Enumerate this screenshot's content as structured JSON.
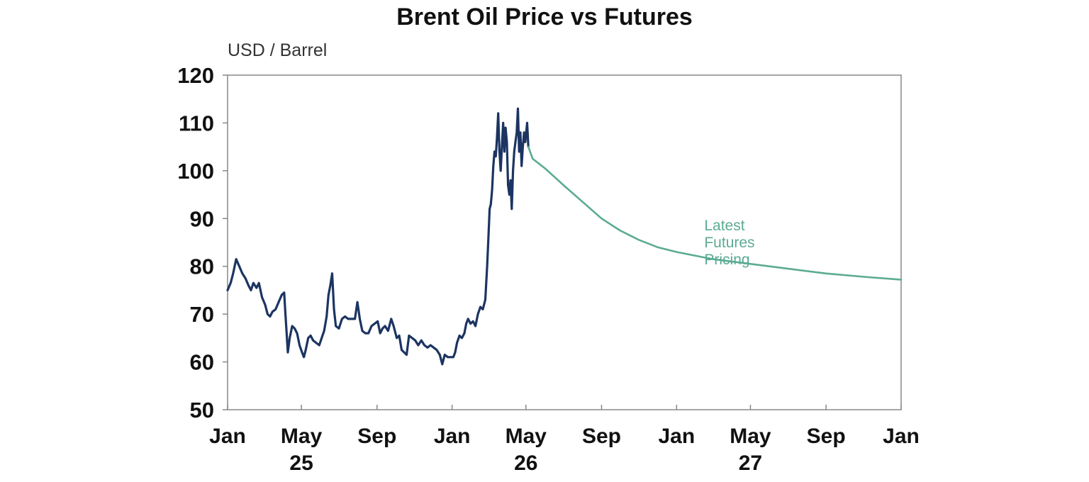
{
  "chart_data": {
    "type": "line",
    "title": "Brent Oil Price vs Futures",
    "ylabel": "USD / Barrel",
    "ylim": [
      50,
      120
    ],
    "yticks": [
      50,
      60,
      70,
      80,
      90,
      100,
      110,
      120
    ],
    "xlim": [
      "2025-01-01",
      "2028-01-01"
    ],
    "xticks": [
      {
        "date": "2025-01-01",
        "label": "Jan"
      },
      {
        "date": "2025-05-01",
        "label": "May"
      },
      {
        "date": "2025-09-01",
        "label": "Sep"
      },
      {
        "date": "2026-01-01",
        "label": "Jan"
      },
      {
        "date": "2026-05-01",
        "label": "May"
      },
      {
        "date": "2026-09-01",
        "label": "Sep"
      },
      {
        "date": "2027-01-01",
        "label": "Jan"
      },
      {
        "date": "2027-05-01",
        "label": "May"
      },
      {
        "date": "2027-09-01",
        "label": "Sep"
      },
      {
        "date": "2028-01-01",
        "label": "Jan"
      }
    ],
    "year_labels": [
      {
        "date": "2025-05-01",
        "label": "25"
      },
      {
        "date": "2026-05-01",
        "label": "26"
      },
      {
        "date": "2027-05-01",
        "label": "27"
      }
    ],
    "annotations": [
      {
        "text": [
          "Latest",
          "Futures",
          "Pricing"
        ],
        "date": "2027-02-15",
        "y": 87.5
      }
    ],
    "grid": false,
    "series": [
      {
        "key": "price",
        "color": "#1c3461",
        "points": [
          [
            "2025-01-01",
            75
          ],
          [
            "2025-01-06",
            76.5
          ],
          [
            "2025-01-10",
            78.5
          ],
          [
            "2025-01-15",
            81.5
          ],
          [
            "2025-01-20",
            80
          ],
          [
            "2025-01-25",
            78.5
          ],
          [
            "2025-01-30",
            77.5
          ],
          [
            "2025-02-04",
            76
          ],
          [
            "2025-02-08",
            75
          ],
          [
            "2025-02-12",
            76.5
          ],
          [
            "2025-02-17",
            75.5
          ],
          [
            "2025-02-21",
            76.5
          ],
          [
            "2025-02-26",
            73.5
          ],
          [
            "2025-03-03",
            72
          ],
          [
            "2025-03-07",
            70
          ],
          [
            "2025-03-11",
            69.5
          ],
          [
            "2025-03-15",
            70.5
          ],
          [
            "2025-03-20",
            71
          ],
          [
            "2025-03-25",
            72.5
          ],
          [
            "2025-03-30",
            74
          ],
          [
            "2025-04-03",
            74.5
          ],
          [
            "2025-04-05",
            70
          ],
          [
            "2025-04-07",
            66
          ],
          [
            "2025-04-09",
            62
          ],
          [
            "2025-04-12",
            65
          ],
          [
            "2025-04-16",
            67.5
          ],
          [
            "2025-04-20",
            67
          ],
          [
            "2025-04-24",
            66
          ],
          [
            "2025-04-28",
            63.5
          ],
          [
            "2025-05-02",
            62
          ],
          [
            "2025-05-05",
            61
          ],
          [
            "2025-05-08",
            62.5
          ],
          [
            "2025-05-12",
            65
          ],
          [
            "2025-05-16",
            65.5
          ],
          [
            "2025-05-20",
            64.5
          ],
          [
            "2025-05-25",
            64
          ],
          [
            "2025-05-30",
            63.5
          ],
          [
            "2025-06-03",
            65
          ],
          [
            "2025-06-07",
            66.5
          ],
          [
            "2025-06-11",
            69.5
          ],
          [
            "2025-06-14",
            74
          ],
          [
            "2025-06-17",
            76
          ],
          [
            "2025-06-20",
            78.5
          ],
          [
            "2025-06-23",
            71
          ],
          [
            "2025-06-26",
            67.5
          ],
          [
            "2025-07-01",
            67
          ],
          [
            "2025-07-06",
            69
          ],
          [
            "2025-07-11",
            69.5
          ],
          [
            "2025-07-16",
            69
          ],
          [
            "2025-07-22",
            69
          ],
          [
            "2025-07-27",
            69
          ],
          [
            "2025-07-31",
            72.5
          ],
          [
            "2025-08-04",
            69
          ],
          [
            "2025-08-08",
            66.5
          ],
          [
            "2025-08-13",
            66
          ],
          [
            "2025-08-18",
            66
          ],
          [
            "2025-08-23",
            67.5
          ],
          [
            "2025-08-28",
            68
          ],
          [
            "2025-09-02",
            68.5
          ],
          [
            "2025-09-06",
            66
          ],
          [
            "2025-09-10",
            67
          ],
          [
            "2025-09-14",
            67.5
          ],
          [
            "2025-09-19",
            66.5
          ],
          [
            "2025-09-24",
            69
          ],
          [
            "2025-09-28",
            67.5
          ],
          [
            "2025-10-03",
            65
          ],
          [
            "2025-10-07",
            65.5
          ],
          [
            "2025-10-11",
            62.5
          ],
          [
            "2025-10-15",
            62
          ],
          [
            "2025-10-19",
            61.5
          ],
          [
            "2025-10-23",
            65.5
          ],
          [
            "2025-10-28",
            65
          ],
          [
            "2025-11-02",
            64.5
          ],
          [
            "2025-11-07",
            63.5
          ],
          [
            "2025-11-12",
            64.5
          ],
          [
            "2025-11-17",
            63.5
          ],
          [
            "2025-11-22",
            63
          ],
          [
            "2025-11-27",
            63.5
          ],
          [
            "2025-12-02",
            63
          ],
          [
            "2025-12-07",
            62.5
          ],
          [
            "2025-12-12",
            61.5
          ],
          [
            "2025-12-16",
            59.5
          ],
          [
            "2025-12-20",
            61.5
          ],
          [
            "2025-12-25",
            61
          ],
          [
            "2025-12-30",
            61
          ],
          [
            "2026-01-03",
            61
          ],
          [
            "2026-01-06",
            62
          ],
          [
            "2026-01-09",
            64
          ],
          [
            "2026-01-13",
            65.5
          ],
          [
            "2026-01-17",
            65
          ],
          [
            "2026-01-21",
            66
          ],
          [
            "2026-01-24",
            68
          ],
          [
            "2026-01-27",
            69
          ],
          [
            "2026-01-31",
            68
          ],
          [
            "2026-02-04",
            68.5
          ],
          [
            "2026-02-08",
            67.5
          ],
          [
            "2026-02-12",
            70
          ],
          [
            "2026-02-16",
            71.5
          ],
          [
            "2026-02-20",
            71
          ],
          [
            "2026-02-24",
            73
          ],
          [
            "2026-02-27",
            80
          ],
          [
            "2026-03-01",
            86
          ],
          [
            "2026-03-03",
            92
          ],
          [
            "2026-03-05",
            93
          ],
          [
            "2026-03-07",
            96
          ],
          [
            "2026-03-09",
            101
          ],
          [
            "2026-03-11",
            104
          ],
          [
            "2026-03-13",
            103
          ],
          [
            "2026-03-15",
            107
          ],
          [
            "2026-03-17",
            112
          ],
          [
            "2026-03-19",
            104
          ],
          [
            "2026-03-21",
            100
          ],
          [
            "2026-03-23",
            105
          ],
          [
            "2026-03-25",
            110
          ],
          [
            "2026-03-27",
            104
          ],
          [
            "2026-03-29",
            109
          ],
          [
            "2026-03-31",
            106
          ],
          [
            "2026-04-02",
            97
          ],
          [
            "2026-04-04",
            95
          ],
          [
            "2026-04-06",
            98
          ],
          [
            "2026-04-08",
            92
          ],
          [
            "2026-04-10",
            100
          ],
          [
            "2026-04-12",
            104
          ],
          [
            "2026-04-14",
            106
          ],
          [
            "2026-04-16",
            108
          ],
          [
            "2026-04-18",
            113
          ],
          [
            "2026-04-20",
            104
          ],
          [
            "2026-04-22",
            108
          ],
          [
            "2026-04-24",
            101
          ],
          [
            "2026-04-26",
            105
          ],
          [
            "2026-04-28",
            108
          ],
          [
            "2026-04-30",
            106
          ],
          [
            "2026-05-03",
            110
          ],
          [
            "2026-05-05",
            105
          ]
        ]
      },
      {
        "key": "futures",
        "color": "#5bab93",
        "points": [
          [
            "2026-05-05",
            105
          ],
          [
            "2026-05-12",
            102.5
          ],
          [
            "2026-06-01",
            100.5
          ],
          [
            "2026-07-01",
            97
          ],
          [
            "2026-08-01",
            93.5
          ],
          [
            "2026-09-01",
            90
          ],
          [
            "2026-10-01",
            87.5
          ],
          [
            "2026-11-01",
            85.5
          ],
          [
            "2026-12-01",
            84
          ],
          [
            "2027-01-01",
            83
          ],
          [
            "2027-03-01",
            81.5
          ],
          [
            "2027-05-01",
            80.5
          ],
          [
            "2027-07-01",
            79.5
          ],
          [
            "2027-09-01",
            78.5
          ],
          [
            "2027-11-01",
            77.8
          ],
          [
            "2028-01-01",
            77.2
          ]
        ]
      }
    ]
  }
}
